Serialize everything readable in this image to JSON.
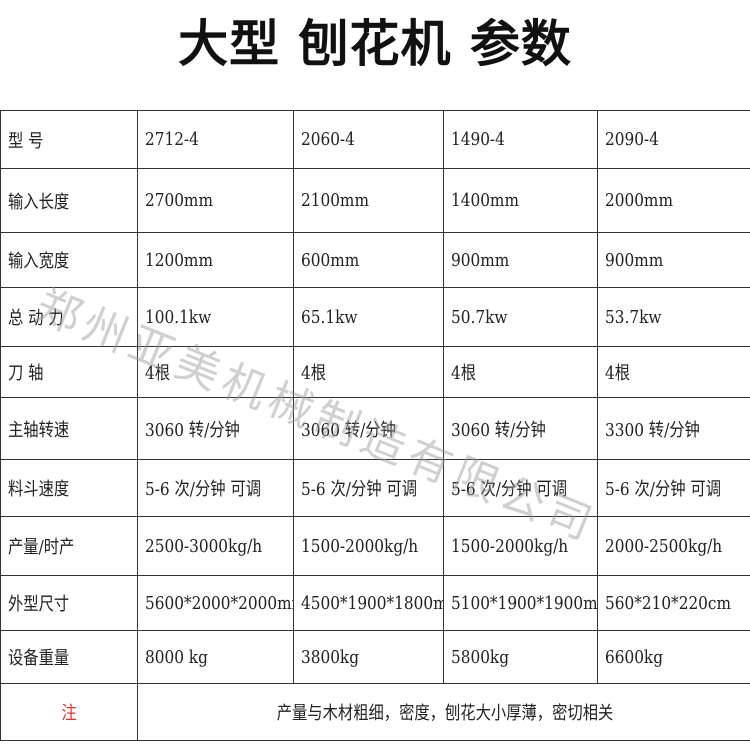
{
  "title": "大型 刨花机 参数",
  "watermark": "郑州亚美机械制造有限公司",
  "accent_color": "#e8312a",
  "rows": [
    {
      "label": "型  号",
      "values": [
        "2712-4",
        "2060-4",
        "1490-4",
        "2090-4"
      ]
    },
    {
      "label": "输入长度",
      "values": [
        "2700mm",
        "2100mm",
        "1400mm",
        "2000mm"
      ]
    },
    {
      "label": "输入宽度",
      "values": [
        "1200mm",
        "600mm",
        "900mm",
        "900mm"
      ]
    },
    {
      "label": "总 动 力",
      "values": [
        "100.1kw",
        "65.1kw",
        "50.7kw",
        "53.7kw"
      ]
    },
    {
      "label": "刀  轴",
      "values": [
        "4根",
        "4根",
        "4根",
        "4根"
      ]
    },
    {
      "label": "主轴转速",
      "values": [
        "3060 转/分钟",
        "3060 转/分钟",
        "3060 转/分钟",
        "3300 转/分钟"
      ]
    },
    {
      "label": "料斗速度",
      "values": [
        "5-6 次/分钟  可调",
        "5-6 次/分钟 可调",
        "5-6 次/分钟 可调",
        "5-6 次/分钟  可调"
      ]
    },
    {
      "label": "产量/时产",
      "values": [
        "2500-3000kg/h",
        "1500-2000kg/h",
        "1500-2000kg/h",
        "2000-2500kg/h"
      ]
    },
    {
      "label": "外型尺寸",
      "values": [
        "5600*2000*2000mm",
        "4500*1900*1800mm",
        "5100*1900*1900mm",
        "560*210*220cm"
      ]
    },
    {
      "label": "设备重量",
      "values": [
        "8000 kg",
        "3800kg",
        "5800kg",
        "6600kg"
      ]
    }
  ],
  "note": {
    "label": "注",
    "text": "产量与木材粗细，密度，刨花大小厚薄，密切相关"
  }
}
